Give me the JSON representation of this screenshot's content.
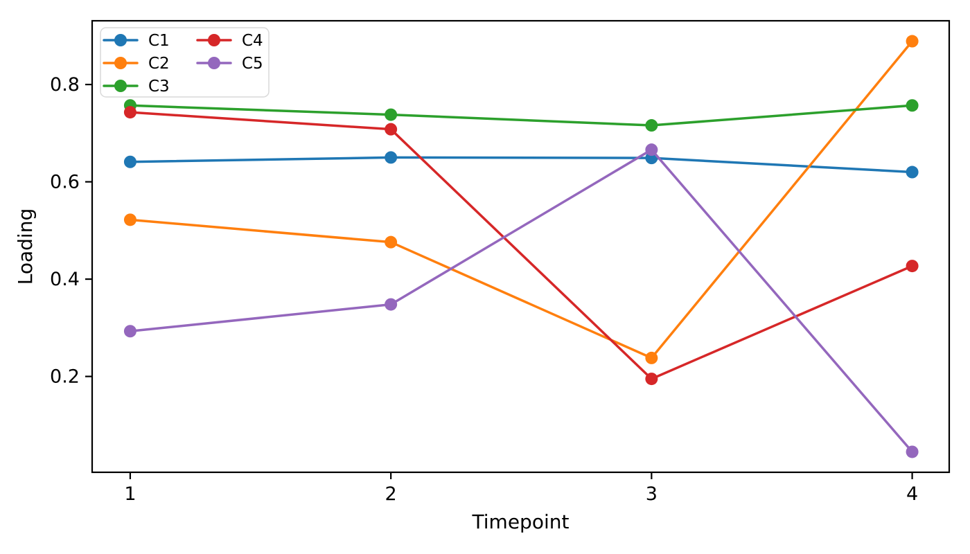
{
  "figure": {
    "background": "#ffffff"
  },
  "chart_data": {
    "type": "line",
    "title": "",
    "xlabel": "Timepoint",
    "ylabel": "Loading",
    "x": [
      1,
      2,
      3,
      4
    ],
    "series": [
      {
        "name": "C1",
        "color": "#1f77b4",
        "values": [
          0.641,
          0.65,
          0.649,
          0.62
        ]
      },
      {
        "name": "C2",
        "color": "#ff7f0e",
        "values": [
          0.522,
          0.476,
          0.238,
          0.889
        ]
      },
      {
        "name": "C3",
        "color": "#2ca02c",
        "values": [
          0.757,
          0.738,
          0.716,
          0.757
        ]
      },
      {
        "name": "C4",
        "color": "#d62728",
        "values": [
          0.743,
          0.708,
          0.195,
          0.427
        ]
      },
      {
        "name": "C5",
        "color": "#9467bd",
        "values": [
          0.293,
          0.348,
          0.666,
          0.045
        ]
      }
    ],
    "xticks": [
      1,
      2,
      3,
      4
    ],
    "xtick_labels": [
      "1",
      "2",
      "3",
      "4"
    ],
    "yticks": [
      0.2,
      0.4,
      0.6,
      0.8
    ],
    "ytick_labels": [
      "0.2",
      "0.4",
      "0.6",
      "0.8"
    ],
    "xlim": [
      0.854,
      4.142
    ],
    "ylim": [
      0.003,
      0.931
    ],
    "grid": false,
    "marker": "circle",
    "marker_size": 9,
    "line_width": 3.5,
    "axis_color": "#000000",
    "text_color": "#000000",
    "legend": {
      "position": "upper-left",
      "columns": 2,
      "entries": [
        "C1",
        "C2",
        "C3",
        "C4",
        "C5"
      ],
      "border_color": "#d9d9d9",
      "background": "#ffffff"
    }
  }
}
